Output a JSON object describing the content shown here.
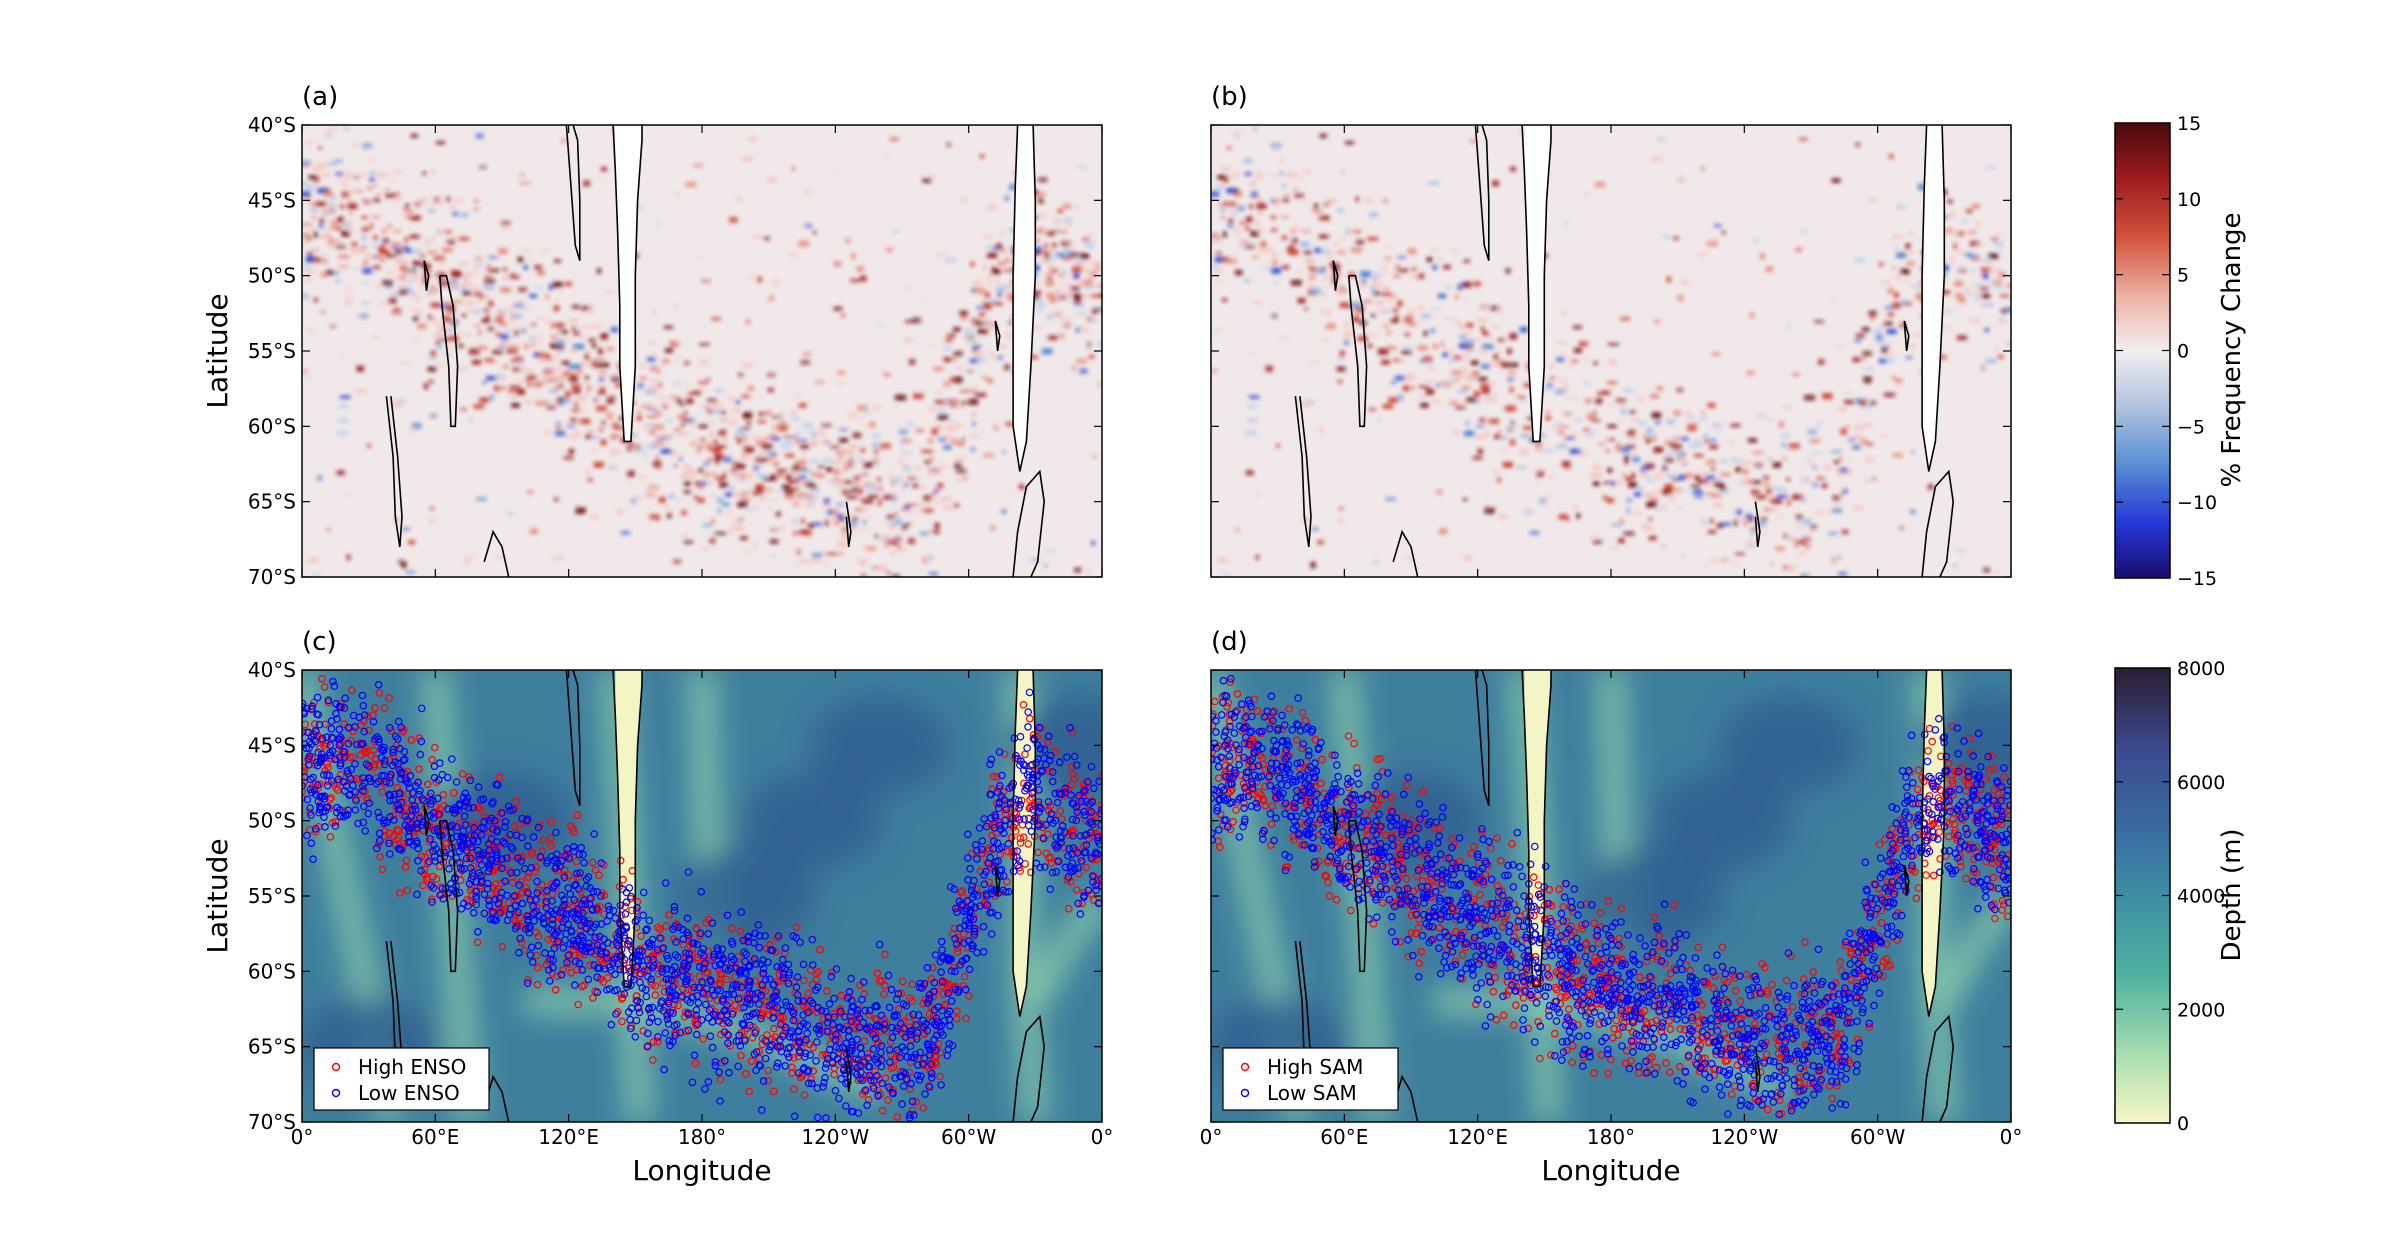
{
  "chart_data": [
    {
      "type": "heatmap",
      "panel_label": "(a)",
      "title": "",
      "xlabel": "",
      "ylabel": "Latitude",
      "x_ticks": [],
      "y_ticks": [
        "40°S",
        "45°S",
        "50°S",
        "55°S",
        "60°S",
        "65°S",
        "70°S"
      ],
      "xlim": [
        0,
        360
      ],
      "ylim": [
        -70,
        -40
      ],
      "pattern": "enso"
    },
    {
      "type": "heatmap",
      "panel_label": "(b)",
      "title": "",
      "xlabel": "",
      "ylabel": "",
      "x_ticks": [],
      "y_ticks": [],
      "xlim": [
        0,
        360
      ],
      "ylim": [
        -70,
        -40
      ],
      "pattern": "sam"
    },
    {
      "type": "scatter",
      "panel_label": "(c)",
      "title": "",
      "xlabel": "Longitude",
      "ylabel": "Latitude",
      "x_ticks": [
        "0°",
        "60°E",
        "120°E",
        "180°",
        "120°W",
        "60°W",
        "0°"
      ],
      "y_ticks": [
        "40°S",
        "45°S",
        "50°S",
        "55°S",
        "60°S",
        "65°S",
        "70°S"
      ],
      "xlim": [
        0,
        360
      ],
      "ylim": [
        -70,
        -40
      ],
      "legend": {
        "placement": "lower-left",
        "entries": [
          {
            "label": "High ENSO",
            "color": "#ff0000"
          },
          {
            "label": "Low ENSO",
            "color": "#0000ff"
          }
        ]
      },
      "series": [
        {
          "name": "High ENSO",
          "color": "#ff0000"
        },
        {
          "name": "Low ENSO",
          "color": "#0000ff"
        }
      ]
    },
    {
      "type": "scatter",
      "panel_label": "(d)",
      "title": "",
      "xlabel": "Longitude",
      "ylabel": "",
      "x_ticks": [
        "0°",
        "60°E",
        "120°E",
        "180°",
        "120°W",
        "60°W",
        "0°"
      ],
      "y_ticks": [],
      "xlim": [
        0,
        360
      ],
      "ylim": [
        -70,
        -40
      ],
      "legend": {
        "placement": "lower-left",
        "entries": [
          {
            "label": "High SAM",
            "color": "#ff0000"
          },
          {
            "label": "Low SAM",
            "color": "#0000ff"
          }
        ]
      },
      "series": [
        {
          "name": "High SAM",
          "color": "#ff0000"
        },
        {
          "name": "Low SAM",
          "color": "#0000ff"
        }
      ]
    }
  ],
  "colorbars": [
    {
      "label": "% Frequency Change",
      "ticks": [
        "15",
        "10",
        "5",
        "0",
        "−5",
        "−10",
        "−15"
      ],
      "range": [
        -15,
        15
      ],
      "colormap": "diverging red-white-blue"
    },
    {
      "label": "Depth (m)",
      "ticks": [
        "8000",
        "6000",
        "4000",
        "2000",
        "0"
      ],
      "range": [
        0,
        8000
      ],
      "colormap": "yellow-green-blue-dark"
    }
  ],
  "colors": {
    "high": "#ff0000",
    "low": "#0000ff",
    "map_background": "#f1e9e9"
  }
}
